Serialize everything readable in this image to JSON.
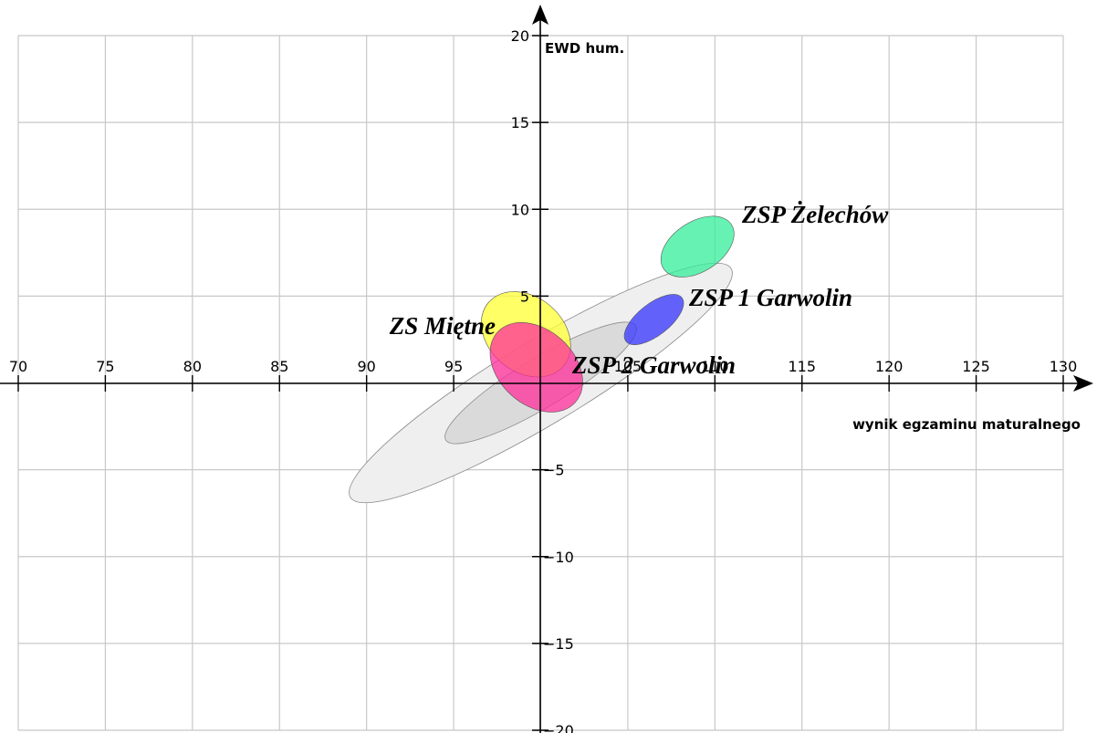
{
  "chart_data": {
    "type": "scatter",
    "title": "",
    "xlabel": "wynik egzaminu maturalnego",
    "ylabel": "EWD hum.",
    "xlim": [
      70,
      130
    ],
    "ylim": [
      -20,
      20
    ],
    "x_ticks": [
      70,
      75,
      80,
      85,
      90,
      95,
      105,
      110,
      115,
      120,
      125,
      130
    ],
    "y_ticks": [
      20,
      15,
      10,
      5,
      -5,
      -10,
      -15,
      -20
    ],
    "grid": true,
    "legend": "none",
    "bands": [
      {
        "name": "outer",
        "center": [
          100,
          0
        ],
        "x_range": [
          89,
          111
        ],
        "y_range": [
          -6.9,
          6.9
        ],
        "angle": 31,
        "color": "#efefef"
      },
      {
        "name": "inner",
        "center": [
          100,
          0
        ],
        "x_range": [
          94.5,
          105.5
        ],
        "y_range": [
          -3.5,
          3.5
        ],
        "angle": 31,
        "color": "#dadada"
      }
    ],
    "series": [
      {
        "name": "ZS Miętne",
        "x": 98.5,
        "y": 2.9,
        "x_range": [
          97,
          101.3
        ],
        "y_range": [
          1,
          4.6
        ],
        "color": "#ffff33"
      },
      {
        "name": "ZSP 2 Garwolin",
        "x": 99.3,
        "y": 0.8,
        "x_range": [
          97.6,
          101.9
        ],
        "y_range": [
          -1,
          2.8
        ],
        "color": "#ff2e9a"
      },
      {
        "name": "ZSP 1 Garwolin",
        "x": 106.5,
        "y": 3.7,
        "x_range": [
          104.8,
          108.2
        ],
        "y_range": [
          2.2,
          5.1
        ],
        "color": "#3333ff"
      },
      {
        "name": "ZSP Żelechów",
        "x": 109,
        "y": 7.8,
        "x_range": [
          106.9,
          111.1
        ],
        "y_range": [
          6.1,
          9.6
        ],
        "color": "#33ee99"
      }
    ]
  }
}
